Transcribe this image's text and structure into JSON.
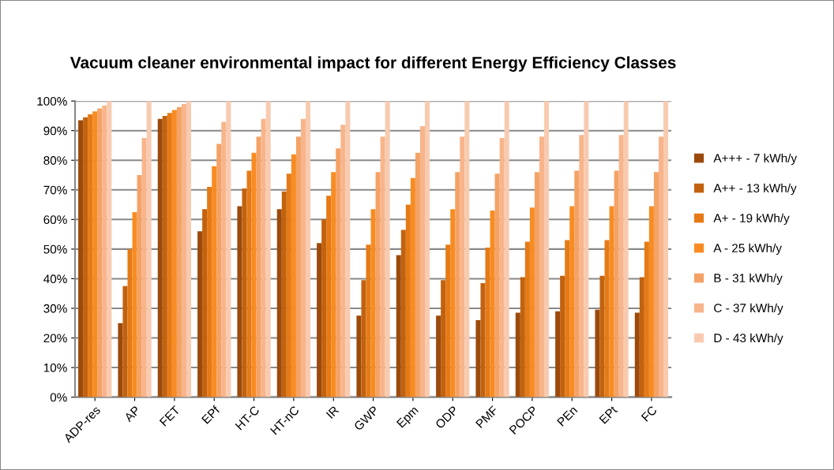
{
  "chart_data": {
    "type": "bar",
    "title": "Vacuum cleaner environmental impact for different Energy Efficiency Classes",
    "categories": [
      "ADP-res",
      "AP",
      "FET",
      "EPf",
      "HT-C",
      "HT-nC",
      "IR",
      "GWP",
      "Epm",
      "ODP",
      "PMF",
      "POCP",
      "PEn",
      "EPt",
      "FC"
    ],
    "series": [
      {
        "name": "A+++ - 7 kWh/y",
        "color": "#9c4a0c",
        "values": [
          93.5,
          25,
          94,
          56,
          64.5,
          63.5,
          52,
          27.5,
          48,
          27.5,
          26,
          28.5,
          29,
          29.5,
          28.5
        ]
      },
      {
        "name": "A++ - 13 kWh/y",
        "color": "#c2620f",
        "values": [
          94.5,
          37.5,
          95,
          63.5,
          70.5,
          69.5,
          60,
          39.5,
          56.5,
          39.5,
          38.5,
          40.5,
          41,
          41,
          40.5
        ]
      },
      {
        "name": "A+ - 19 kWh/y",
        "color": "#e57a16",
        "values": [
          95.5,
          50,
          96,
          71,
          76.5,
          75.5,
          68,
          51.5,
          65,
          51.5,
          50.5,
          52.5,
          53,
          53,
          52.5
        ]
      },
      {
        "name": "A - 25 kWh/y",
        "color": "#f88c22",
        "values": [
          96.5,
          62.5,
          97,
          78,
          82.5,
          82,
          76,
          63.5,
          74,
          63.5,
          63,
          64,
          64.5,
          64.5,
          64.5
        ]
      },
      {
        "name": "B - 31 kWh/y",
        "color": "#f4a266",
        "values": [
          97.5,
          75,
          98,
          85.5,
          88,
          88,
          84,
          76,
          82.5,
          76,
          75.5,
          76,
          76.5,
          76.5,
          76
        ]
      },
      {
        "name": "C - 37 kWh/y",
        "color": "#f8b58b",
        "values": [
          98.5,
          87.5,
          99,
          93,
          94,
          94,
          92,
          88,
          91.5,
          88,
          87.5,
          88,
          88.5,
          88.5,
          88
        ]
      },
      {
        "name": "D - 43 kWh/y",
        "color": "#f8cbb0",
        "values": [
          100,
          100,
          100,
          100,
          100,
          100,
          100,
          100,
          100,
          100,
          100,
          100,
          100,
          100,
          100
        ]
      }
    ],
    "ylim": [
      0,
      100
    ],
    "yticks": [
      {
        "value": 0,
        "label": "0%"
      },
      {
        "value": 10,
        "label": "10%"
      },
      {
        "value": 20,
        "label": "20%"
      },
      {
        "value": 30,
        "label": "30%"
      },
      {
        "value": 40,
        "label": "40%"
      },
      {
        "value": 50,
        "label": "50%"
      },
      {
        "value": 60,
        "label": "60%"
      },
      {
        "value": 70,
        "label": "70%"
      },
      {
        "value": 80,
        "label": "80%"
      },
      {
        "value": 90,
        "label": "90%"
      },
      {
        "value": 100,
        "label": "100%"
      }
    ],
    "grid": "y",
    "legend": "right"
  }
}
